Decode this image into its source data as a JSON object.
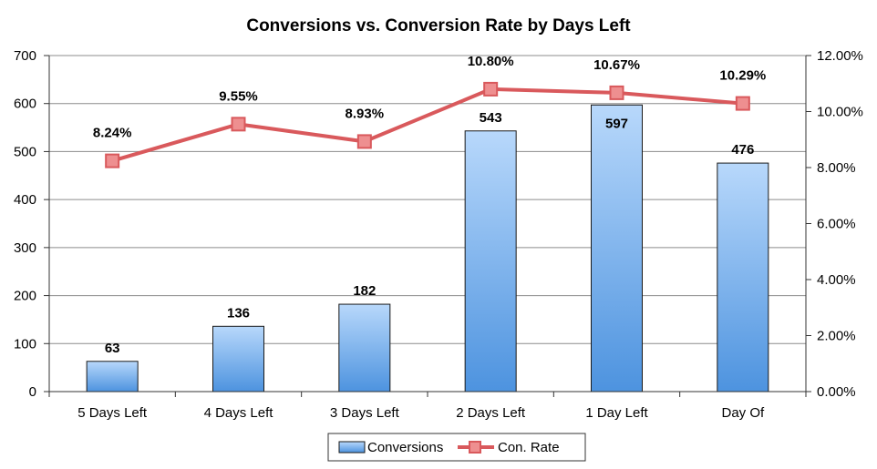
{
  "chart_data": {
    "type": "bar+line",
    "title": "Conversions vs. Conversion Rate by Days Left",
    "categories": [
      "5 Days Left",
      "4 Days Left",
      "3 Days Left",
      "2 Days Left",
      "1 Day Left",
      "Day Of"
    ],
    "series": [
      {
        "name": "Conversions",
        "type": "bar",
        "axis": "left",
        "values": [
          63,
          136,
          182,
          543,
          597,
          476
        ],
        "labels": [
          "63",
          "136",
          "182",
          "543",
          "597",
          "476"
        ]
      },
      {
        "name": "Con. Rate",
        "type": "line",
        "axis": "right",
        "values": [
          8.24,
          9.55,
          8.93,
          10.8,
          10.67,
          10.29
        ],
        "labels": [
          "8.24%",
          "9.55%",
          "8.93%",
          "10.80%",
          "10.67%",
          "10.29%"
        ]
      }
    ],
    "y_left": {
      "min": 0,
      "max": 700,
      "ticks": [
        "0",
        "100",
        "200",
        "300",
        "400",
        "500",
        "600",
        "700"
      ]
    },
    "y_right": {
      "min": 0,
      "max": 12,
      "ticks": [
        "0.00%",
        "2.00%",
        "4.00%",
        "6.00%",
        "8.00%",
        "10.00%",
        "12.00%"
      ]
    },
    "grid": true,
    "legend": {
      "position": "bottom",
      "entries": [
        "Conversions",
        "Con. Rate"
      ]
    },
    "colors": {
      "bar_top": "#b8d8fb",
      "bar_bottom": "#4d93df",
      "bar_stroke": "#1a1a1a",
      "line": "#d9595c",
      "marker_fill": "#ee8f90",
      "grid": "#8c8c8c"
    }
  }
}
